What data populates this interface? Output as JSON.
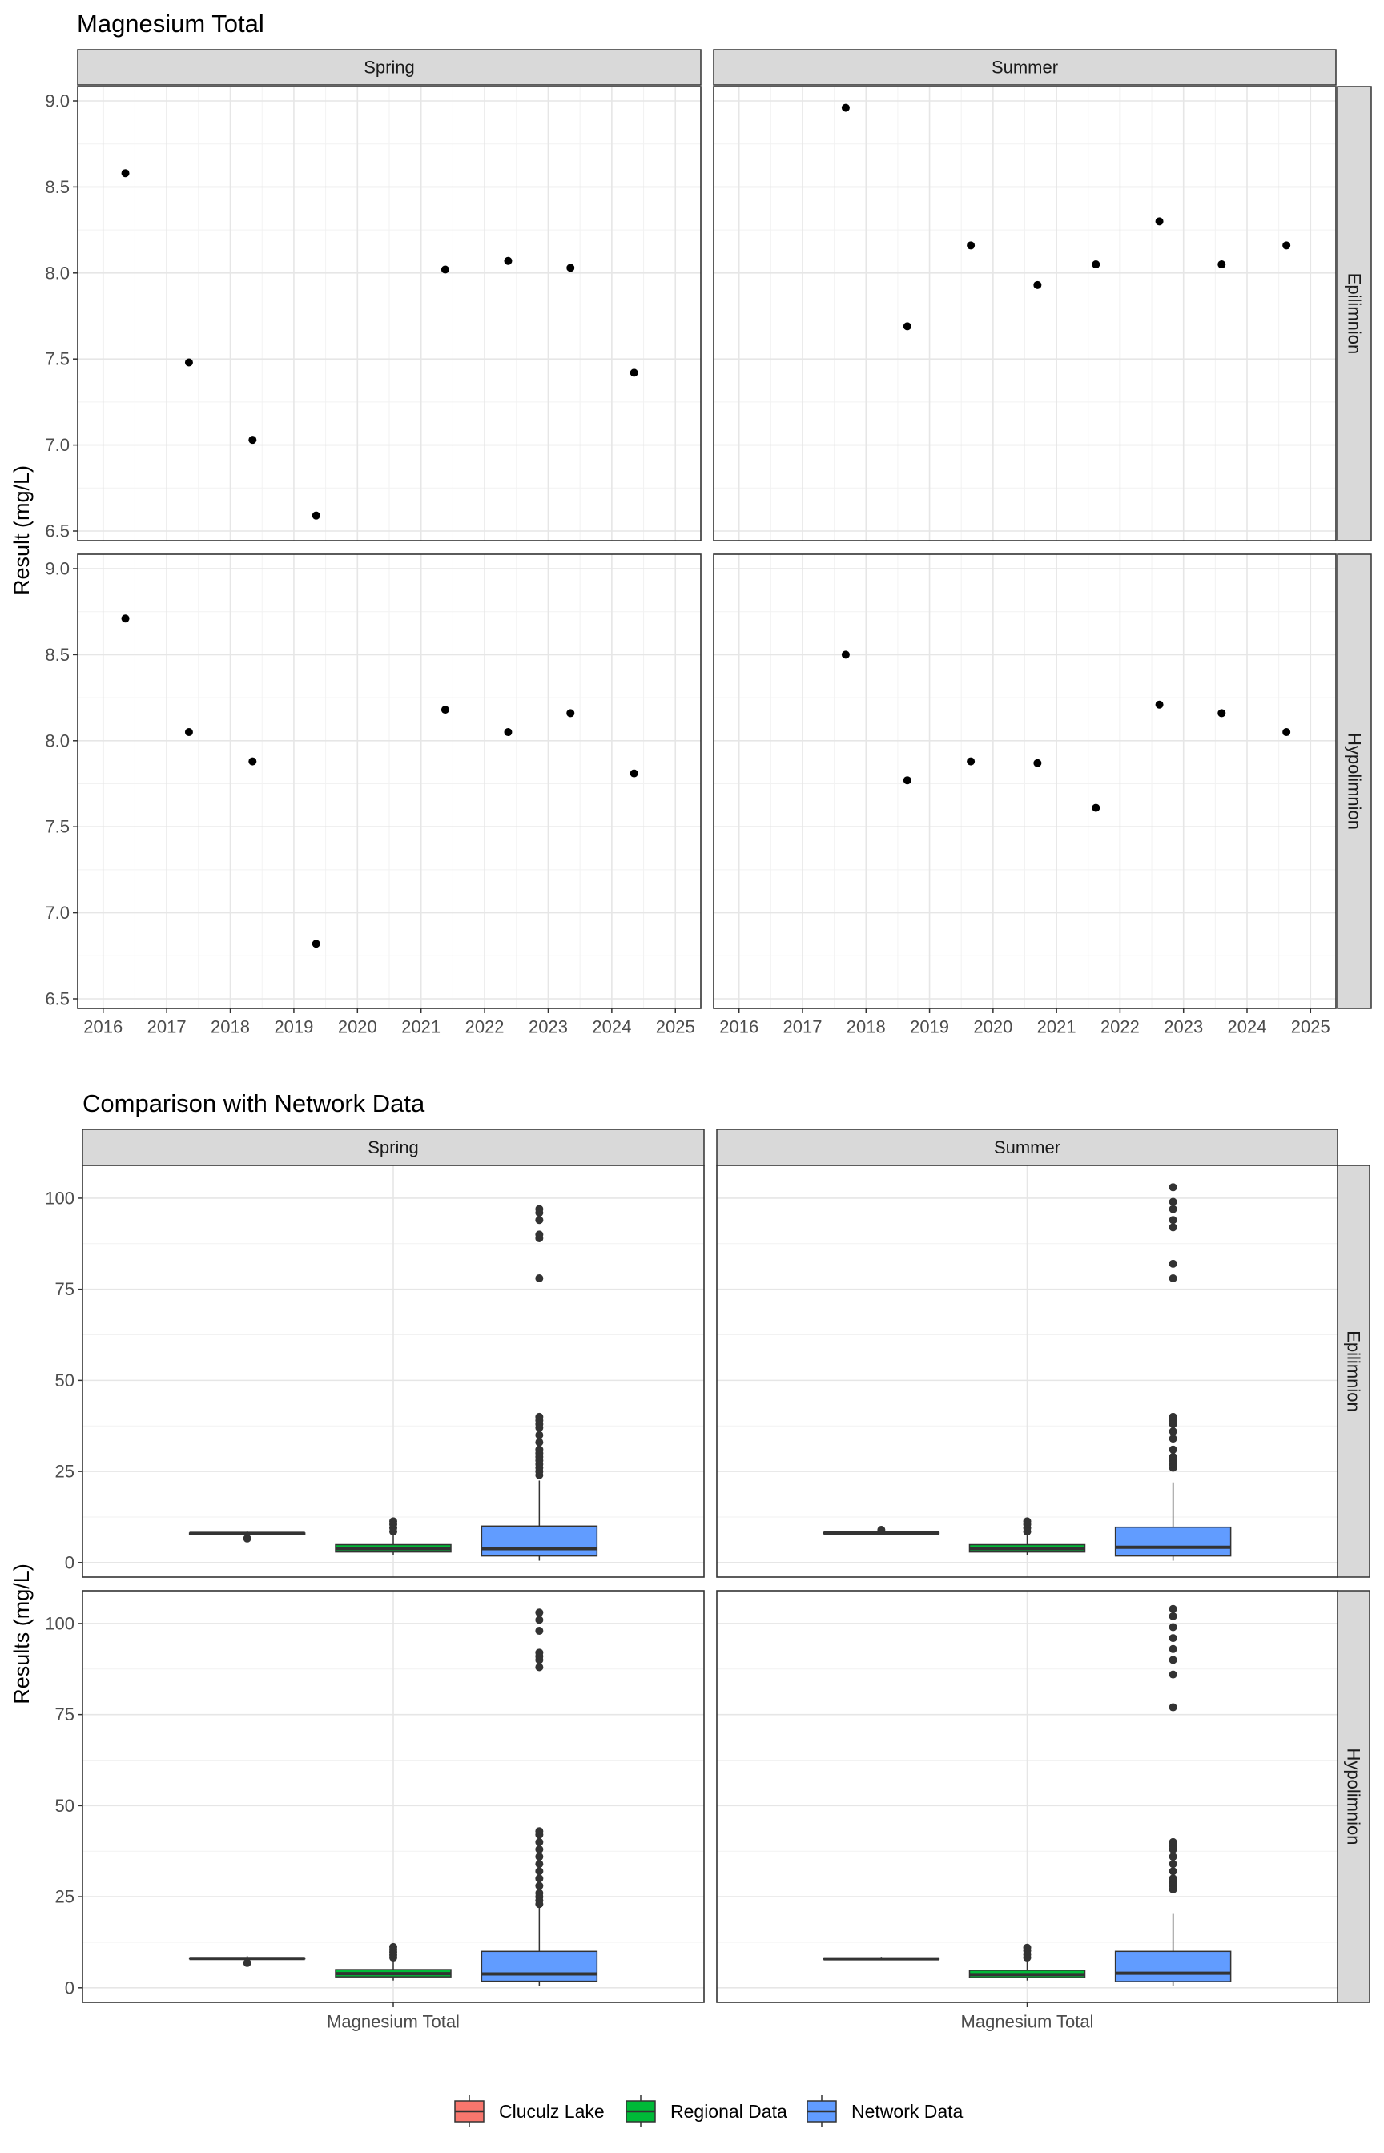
{
  "chart_data": [
    {
      "type": "scatter",
      "title": "Magnesium Total",
      "ylabel": "Result (mg/L)",
      "xlabel": "",
      "ylim": [
        6.5,
        9.0
      ],
      "xlim": [
        2015.6,
        2025.4
      ],
      "x_ticks": [
        2016,
        2017,
        2018,
        2019,
        2020,
        2021,
        2022,
        2023,
        2024,
        2025
      ],
      "y_ticks": [
        6.5,
        7.0,
        7.5,
        8.0,
        8.5,
        9.0
      ],
      "y_tick_labels": [
        "6.5",
        "7.0",
        "7.5",
        "8.0",
        "8.5",
        "9.0"
      ],
      "columns": [
        "Spring",
        "Summer"
      ],
      "rows": [
        "Epilimnion",
        "Hypolimnion"
      ],
      "grid": true,
      "point_color": "#000000",
      "panels": [
        {
          "column": "Spring",
          "row": "Epilimnion",
          "points": [
            [
              2016.35,
              8.58
            ],
            [
              2017.35,
              7.48
            ],
            [
              2018.35,
              7.03
            ],
            [
              2019.35,
              6.59
            ],
            [
              2021.38,
              8.02
            ],
            [
              2022.37,
              8.07
            ],
            [
              2023.35,
              8.03
            ],
            [
              2024.35,
              7.42
            ]
          ]
        },
        {
          "column": "Summer",
          "row": "Epilimnion",
          "points": [
            [
              2017.68,
              8.96
            ],
            [
              2018.65,
              7.69
            ],
            [
              2019.65,
              8.16
            ],
            [
              2020.7,
              7.93
            ],
            [
              2021.62,
              8.05
            ],
            [
              2022.62,
              8.3
            ],
            [
              2023.6,
              8.05
            ],
            [
              2024.62,
              8.16
            ]
          ]
        },
        {
          "column": "Spring",
          "row": "Hypolimnion",
          "points": [
            [
              2016.35,
              8.71
            ],
            [
              2017.35,
              8.05
            ],
            [
              2018.35,
              7.88
            ],
            [
              2019.35,
              6.82
            ],
            [
              2021.38,
              8.18
            ],
            [
              2022.37,
              8.05
            ],
            [
              2023.35,
              8.16
            ],
            [
              2024.35,
              7.81
            ]
          ]
        },
        {
          "column": "Summer",
          "row": "Hypolimnion",
          "points": [
            [
              2017.68,
              8.5
            ],
            [
              2018.65,
              7.77
            ],
            [
              2019.65,
              7.88
            ],
            [
              2020.7,
              7.87
            ],
            [
              2021.62,
              7.61
            ],
            [
              2022.62,
              8.21
            ],
            [
              2023.6,
              8.16
            ],
            [
              2024.62,
              8.05
            ]
          ]
        }
      ]
    },
    {
      "type": "box",
      "title": "Comparison with Network Data",
      "ylabel": "Results (mg/L)",
      "xlabel": "",
      "category": "Magnesium Total",
      "ylim": [
        -4,
        109
      ],
      "y_ticks": [
        0,
        25,
        50,
        75,
        100
      ],
      "y_tick_labels": [
        "0",
        "25",
        "50",
        "75",
        "100"
      ],
      "columns": [
        "Spring",
        "Summer"
      ],
      "rows": [
        "Epilimnion",
        "Hypolimnion"
      ],
      "grid": true,
      "legend": {
        "position": "bottom",
        "items": [
          {
            "name": "Cluculz Lake",
            "color": "#F8766D"
          },
          {
            "name": "Regional Data",
            "color": "#00BA38"
          },
          {
            "name": "Network Data",
            "color": "#619CFF"
          }
        ]
      },
      "panels": [
        {
          "column": "Spring",
          "row": "Epilimnion",
          "series": [
            {
              "name": "Cluculz Lake",
              "min": 7.4,
              "q1": 7.8,
              "median": 8.0,
              "q3": 8.1,
              "max": 8.6,
              "outliers": [
                6.6
              ]
            },
            {
              "name": "Regional Data",
              "min": 2.0,
              "q1": 2.9,
              "median": 3.8,
              "q3": 4.9,
              "max": 7.8,
              "outliers": [
                8.5,
                9.5,
                10.5,
                11.3
              ]
            },
            {
              "name": "Network Data",
              "min": 0.5,
              "q1": 1.8,
              "median": 3.8,
              "q3": 10.0,
              "max": 22.5,
              "outliers": [
                24,
                25,
                26,
                27,
                28,
                29,
                30,
                31,
                33,
                35,
                37,
                38,
                39,
                40,
                78,
                89,
                90,
                94,
                96,
                97
              ]
            }
          ]
        },
        {
          "column": "Summer",
          "row": "Epilimnion",
          "series": [
            {
              "name": "Cluculz Lake",
              "min": 7.7,
              "q1": 7.95,
              "median": 8.1,
              "q3": 8.2,
              "max": 8.3,
              "outliers": [
                8.96
              ]
            },
            {
              "name": "Regional Data",
              "min": 2.0,
              "q1": 2.9,
              "median": 3.8,
              "q3": 4.9,
              "max": 7.8,
              "outliers": [
                8.5,
                9.5,
                10.5,
                11.3
              ]
            },
            {
              "name": "Network Data",
              "min": 0.5,
              "q1": 1.8,
              "median": 4.2,
              "q3": 9.7,
              "max": 22.0,
              "outliers": [
                26,
                27,
                28,
                29,
                31,
                34,
                36,
                38,
                39,
                40,
                78,
                82,
                92,
                94,
                97,
                99,
                103
              ]
            }
          ]
        },
        {
          "column": "Spring",
          "row": "Hypolimnion",
          "series": [
            {
              "name": "Cluculz Lake",
              "min": 7.8,
              "q1": 7.95,
              "median": 8.05,
              "q3": 8.17,
              "max": 8.7,
              "outliers": [
                6.82
              ]
            },
            {
              "name": "Regional Data",
              "min": 2.0,
              "q1": 3.0,
              "median": 3.9,
              "q3": 5.0,
              "max": 7.8,
              "outliers": [
                8.3,
                9.0,
                9.8,
                10.5,
                11.2
              ]
            },
            {
              "name": "Network Data",
              "min": 0.5,
              "q1": 1.8,
              "median": 3.8,
              "q3": 10.0,
              "max": 22.0,
              "outliers": [
                23,
                24,
                25,
                26,
                28,
                30,
                32,
                34,
                36,
                38,
                40,
                42,
                43,
                88,
                90,
                91,
                92,
                98,
                101,
                103
              ]
            }
          ]
        },
        {
          "column": "Summer",
          "row": "Hypolimnion",
          "series": [
            {
              "name": "Cluculz Lake",
              "min": 7.6,
              "q1": 7.85,
              "median": 7.95,
              "q3": 8.15,
              "max": 8.5,
              "outliers": []
            },
            {
              "name": "Regional Data",
              "min": 2.0,
              "q1": 2.8,
              "median": 3.6,
              "q3": 4.8,
              "max": 7.7,
              "outliers": [
                8.3,
                9.2,
                10.2,
                11.0
              ]
            },
            {
              "name": "Network Data",
              "min": 0.5,
              "q1": 1.7,
              "median": 4.0,
              "q3": 10.0,
              "max": 20.5,
              "outliers": [
                27,
                28,
                29,
                30,
                32,
                34,
                36,
                38,
                39,
                40,
                77,
                86,
                90,
                93,
                96,
                99,
                102,
                104
              ]
            }
          ]
        }
      ]
    }
  ]
}
